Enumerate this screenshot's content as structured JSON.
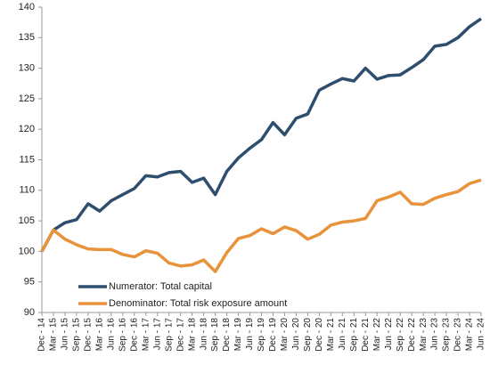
{
  "chart_data": {
    "type": "line",
    "categories": [
      "Dec - 14",
      "Mar - 15",
      "Jun - 15",
      "Sep - 15",
      "Dec - 15",
      "Mar - 16",
      "Jun - 16",
      "Sep - 16",
      "Dec - 16",
      "Mar - 17",
      "Jun - 17",
      "Sep - 17",
      "Dec - 17",
      "Mar - 18",
      "Jun - 18",
      "Sep - 18",
      "Dec - 18",
      "Mar - 19",
      "Jun - 19",
      "Sep - 19",
      "Dec - 19",
      "Mar - 20",
      "Jun - 20",
      "Sep - 20",
      "Dec - 20",
      "Mar - 21",
      "Jun - 21",
      "Sep - 21",
      "Dec - 21",
      "Mar - 22",
      "Jun - 22",
      "Sep - 22",
      "Dec - 22",
      "Mar - 23",
      "Jun - 23",
      "Sep - 23",
      "Dec - 23",
      "Mar - 24",
      "Jun - 24"
    ],
    "series": [
      {
        "name": "Numerator: Total capital",
        "color": "#2e4e6e",
        "values": [
          100,
          103.5,
          104.7,
          105.2,
          107.8,
          106.6,
          108.3,
          109.3,
          110.3,
          112.4,
          112.2,
          112.9,
          113.1,
          111.3,
          112.0,
          109.3,
          113.1,
          115.3,
          116.9,
          118.3,
          121.1,
          119.1,
          121.8,
          122.5,
          126.4,
          127.4,
          128.3,
          127.9,
          130.0,
          128.2,
          128.8,
          128.9,
          130.1,
          131.4,
          133.6,
          133.9,
          135.0,
          136.8,
          138.1
        ]
      },
      {
        "name": "Denominator: Total risk exposure amount",
        "color": "#e8923a",
        "values": [
          100,
          103.5,
          102.0,
          101.1,
          100.4,
          100.3,
          100.3,
          99.5,
          99.1,
          100.1,
          99.7,
          98.1,
          97.6,
          97.8,
          98.6,
          96.7,
          99.8,
          102.1,
          102.6,
          103.7,
          102.9,
          104.0,
          103.4,
          102.0,
          102.8,
          104.3,
          104.8,
          105.0,
          105.4,
          108.3,
          108.9,
          109.7,
          107.8,
          107.7,
          108.7,
          109.3,
          109.8,
          111.1,
          111.7
        ]
      }
    ],
    "ylim": [
      90,
      140
    ],
    "yticks": [
      90,
      95,
      100,
      105,
      110,
      115,
      120,
      125,
      130,
      135,
      140
    ],
    "legend": "lower-left"
  }
}
